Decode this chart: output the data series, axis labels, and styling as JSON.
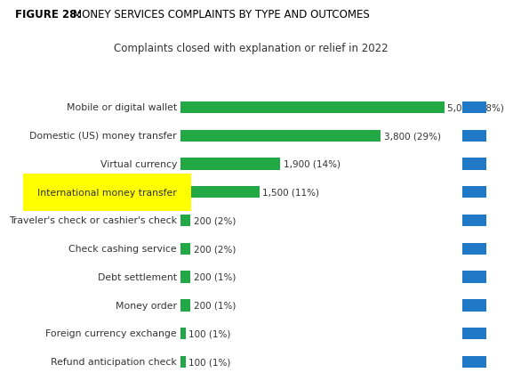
{
  "figure_title_bold": "FIGURE 28:",
  "figure_title_rest": "  MONEY SERVICES COMPLAINTS BY TYPE AND OUTCOMES",
  "subtitle": "Complaints closed with explanation or relief in 2022",
  "categories": [
    "Mobile or digital wallet",
    "Domestic (US) money transfer",
    "Virtual currency",
    "International money transfer",
    "Traveler's check or cashier's check",
    "Check cashing service",
    "Debt settlement",
    "Money order",
    "Foreign currency exchange",
    "Refund anticipation check"
  ],
  "values": [
    5000,
    3800,
    1900,
    1500,
    200,
    200,
    200,
    200,
    100,
    100
  ],
  "labels": [
    "5,000 (38%)",
    "3,800 (29%)",
    "1,900 (14%)",
    "1,500 (11%)",
    "200 (2%)",
    "200 (2%)",
    "200 (1%)",
    "200 (1%)",
    "100 (1%)",
    "100 (1%)"
  ],
  "bar_color": "#22a845",
  "blue_color": "#2079c7",
  "highlight_category_index": 3,
  "highlight_color": "#ffff00",
  "background_color": "#ffffff",
  "text_color": "#333333",
  "title_color": "#000000",
  "subtitle_fontsize": 8.5,
  "label_fontsize": 7.8,
  "bar_height": 0.42,
  "max_value": 5200
}
